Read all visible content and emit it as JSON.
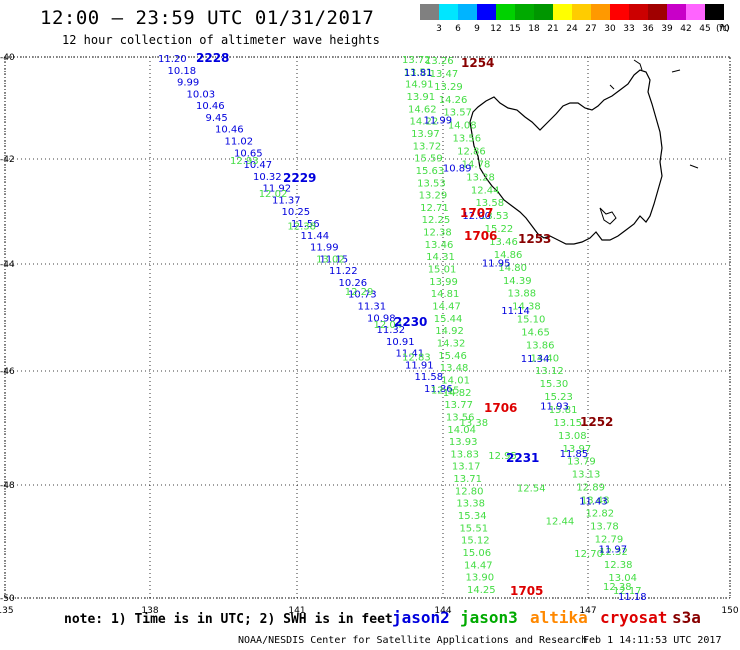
{
  "title": "12:00 – 23:59 UTC 01/31/2017",
  "subtitle": "12 hour collection of altimeter wave heights",
  "colorbar": {
    "labels": [
      "3",
      "6",
      "9",
      "12",
      "15",
      "18",
      "21",
      "24",
      "27",
      "30",
      "33",
      "36",
      "39",
      "42",
      "45",
      "70"
    ],
    "unit": "(ft)",
    "colors": [
      "#808080",
      "#00e6ff",
      "#00b4ff",
      "#0000ff",
      "#00d200",
      "#00aa00",
      "#009600",
      "#ffff00",
      "#ffcc00",
      "#ff9900",
      "#ff0000",
      "#cc0000",
      "#a00000",
      "#c800c8",
      "#ff64ff",
      "#000000"
    ]
  },
  "axes": {
    "x_ticks": [
      "135",
      "138",
      "141",
      "144",
      "147",
      "150"
    ],
    "y_ticks": [
      "-40",
      "-42",
      "-44",
      "-46",
      "-48",
      "-50"
    ]
  },
  "satellites": [
    {
      "name": "jason2",
      "color": "#0000dd"
    },
    {
      "name": "jason3",
      "color": "#00aa00"
    },
    {
      "name": "altika",
      "color": "#ff8800"
    },
    {
      "name": "cryosat",
      "color": "#dd0000"
    },
    {
      "name": "s3a",
      "color": "#880000"
    }
  ],
  "passes": {
    "jason2_2228": {
      "label": "2228",
      "color": "#0000dd",
      "values": [
        "11.20",
        "10.18",
        "9.99",
        "10.03",
        "10.46",
        "9.45",
        "10.46",
        "11.02",
        "10.65",
        "10.47",
        "10.32",
        "11.92",
        "11.37",
        "10.25",
        "11.56",
        "11.44",
        "11.99",
        "11.15",
        "11.22",
        "10.26",
        "10.73",
        "11.31",
        "10.98",
        "11.32",
        "10.91",
        "11.41",
        "11.91",
        "11.58",
        "11.86"
      ]
    },
    "jason2_2230": {
      "label": "2230",
      "color": "#0000dd"
    },
    "jason2_2229": {
      "label": "2229",
      "color": "#0000dd"
    },
    "jason2_2231": {
      "label": "2231",
      "color": "#0000dd",
      "values": [
        "11.81",
        "11.99",
        "10.89",
        "12.00",
        "11.95",
        "11.14",
        "11.34",
        "11.93",
        "11.85",
        "11.43",
        "11.97",
        "11.18"
      ]
    },
    "jason3_left": {
      "color": "#44dd44",
      "values": [
        "13.72",
        "13.51",
        "14.91",
        "13.91",
        "14.62",
        "14.22",
        "13.97",
        "13.72",
        "15.59",
        "15.63",
        "13.53",
        "13.29",
        "12.71",
        "12.25",
        "12.38",
        "13.46",
        "14.31",
        "15.01",
        "13.99",
        "14.81",
        "14.47",
        "15.44",
        "14.92",
        "14.32",
        "15.46",
        "13.48",
        "14.01",
        "14.82",
        "13.77",
        "13.56",
        "14.04",
        "13.93",
        "13.83",
        "13.17",
        "13.71",
        "12.80",
        "13.38",
        "15.34",
        "15.51",
        "15.12",
        "15.06",
        "14.47",
        "13.90",
        "14.25"
      ]
    },
    "jason3_right": {
      "color": "#44dd44",
      "values": [
        "13.26",
        "13.47",
        "13.29",
        "14.26",
        "13.57",
        "14.08",
        "13.56",
        "12.86",
        "14.78",
        "13.28",
        "12.44",
        "13.58",
        "13.53",
        "15.22",
        "13.46",
        "14.86",
        "14.80",
        "14.39",
        "13.88",
        "14.38",
        "15.10",
        "14.65",
        "13.86",
        "14.40",
        "13.12",
        "15.30",
        "15.23",
        "15.81",
        "13.15",
        "13.08",
        "13.97",
        "13.79",
        "13.13",
        "12.89",
        "13.48",
        "12.82",
        "13.78",
        "12.79",
        "12.32",
        "12.38",
        "13.04",
        "12.17"
      ]
    },
    "jason3_mid": {
      "color": "#44dd44",
      "values": [
        "12.93",
        "12.02",
        "12.38",
        "13.02",
        "12.29",
        "12.04",
        "12.83",
        "12.15",
        "13.38",
        "12.95",
        "12.54",
        "12.44",
        "12.70",
        "12.38"
      ]
    },
    "cryosat": {
      "labels": [
        "1707",
        "1706",
        "1706",
        "1705"
      ],
      "color": "#dd0000"
    },
    "s3a": {
      "labels": [
        "1254",
        "1253",
        "1252"
      ],
      "color": "#880000"
    }
  },
  "note": "note: 1) Time is in UTC; 2) SWH is in feet",
  "credit": "NOAA/NESDIS Center for Satellite Applications and Research",
  "timestamp": "Feb  1 14:11:53 UTC 2017"
}
